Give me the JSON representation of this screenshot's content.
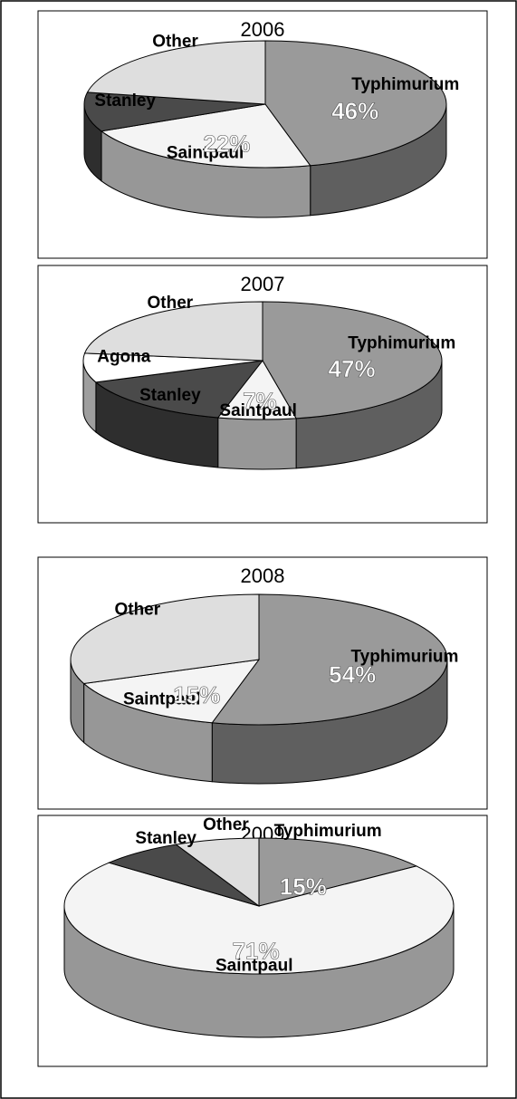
{
  "chart_data": [
    {
      "type": "pie3d",
      "title": "2006",
      "categories": [
        "Typhimurium",
        "Saintpaul",
        "Stanley",
        "Other"
      ],
      "values": [
        46,
        22,
        10,
        22
      ],
      "value_labels": [
        "46%",
        "22%",
        null,
        null
      ],
      "colors": [
        "#9a9a9a",
        "#f4f4f4",
        "#4a4a4a",
        "#dedede"
      ]
    },
    {
      "type": "pie3d",
      "title": "2007",
      "categories": [
        "Typhimurium",
        "Saintpaul",
        "Stanley",
        "Agona",
        "Other"
      ],
      "values": [
        47,
        7,
        15,
        8,
        23
      ],
      "value_labels": [
        "47%",
        "7%",
        null,
        null,
        null
      ],
      "colors": [
        "#9a9a9a",
        "#f4f4f4",
        "#4a4a4a",
        "#ffffff",
        "#dedede"
      ]
    },
    {
      "type": "pie3d",
      "title": "2008",
      "categories": [
        "Typhimurium",
        "Saintpaul",
        "Other"
      ],
      "values": [
        54,
        15,
        31
      ],
      "value_labels": [
        "54%",
        "15%",
        null
      ],
      "colors": [
        "#9a9a9a",
        "#f4f4f4",
        "#dedede"
      ]
    },
    {
      "type": "pie3d",
      "title": "2009",
      "categories": [
        "Typhimurium",
        "Saintpaul",
        "Stanley",
        "Other"
      ],
      "values": [
        15,
        71,
        7,
        7
      ],
      "value_labels": [
        "15%",
        "71%",
        null,
        null
      ],
      "colors": [
        "#9a9a9a",
        "#f4f4f4",
        "#4a4a4a",
        "#dedede"
      ]
    }
  ]
}
